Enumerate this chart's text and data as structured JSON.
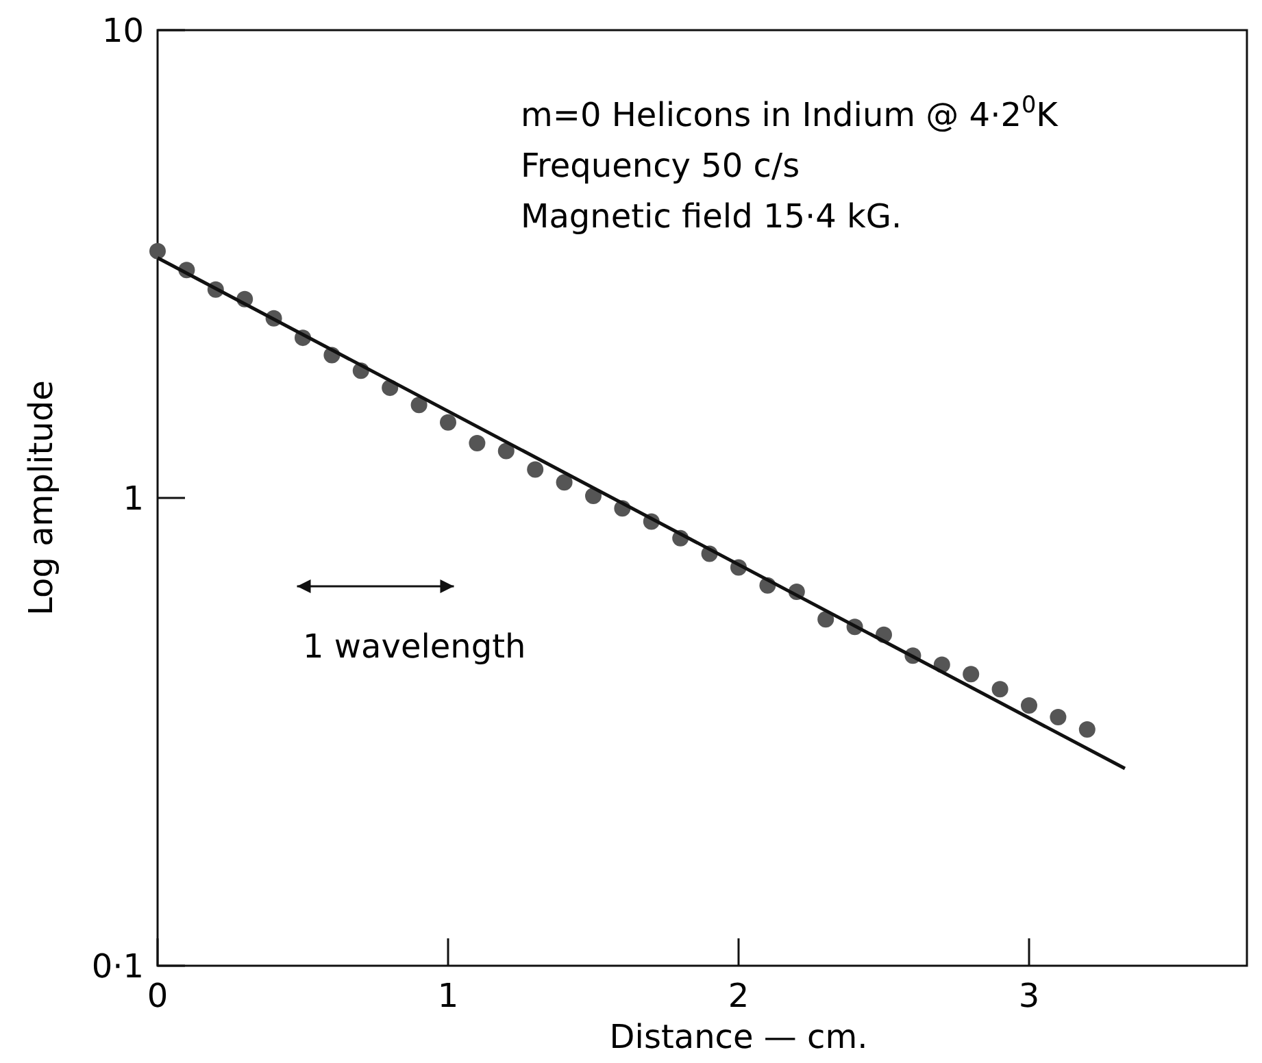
{
  "chart_data": {
    "type": "scatter",
    "xlabel": "Distance — cm.",
    "ylabel": "Log amplitude",
    "log": "y",
    "xlim": [
      0,
      3.75
    ],
    "ylim": [
      0.1,
      10
    ],
    "xticks": [
      0,
      1,
      2,
      3
    ],
    "yticks": [
      {
        "value": 0.1,
        "label": "0·1"
      },
      {
        "value": 1,
        "label": "1"
      },
      {
        "value": 10,
        "label": "10"
      }
    ],
    "grid": false,
    "annotations": [
      "m=0 Helicons in Indium @ 4·2$^{0}$K",
      "Frequency 50 c/s",
      "Magnetic field 15·4 kG.",
      "1 wavelength"
    ],
    "series": [
      {
        "marker": "circle",
        "color": "#555555",
        "x": [
          0,
          0.1,
          0.2,
          0.3,
          0.4,
          0.5,
          0.6,
          0.7,
          0.8,
          0.9,
          1.0,
          1.1,
          1.2,
          1.3,
          1.4,
          1.5,
          1.6,
          1.7,
          1.8,
          1.9,
          2.0,
          2.1,
          2.2,
          2.3,
          2.4,
          2.5,
          2.6,
          2.7,
          2.8,
          2.9,
          3.0,
          3.1,
          3.2
        ],
        "values": [
          3.37,
          3.07,
          2.79,
          2.66,
          2.42,
          2.2,
          2.02,
          1.87,
          1.72,
          1.58,
          1.45,
          1.31,
          1.26,
          1.15,
          1.08,
          1.01,
          0.95,
          0.89,
          0.82,
          0.76,
          0.71,
          0.65,
          0.63,
          0.55,
          0.53,
          0.51,
          0.46,
          0.44,
          0.42,
          0.39,
          0.36,
          0.34,
          0.32
        ]
      },
      {
        "type": "line",
        "marker": "none",
        "color": "#111111",
        "line_style": "solid",
        "x": [
          0,
          3.33
        ],
        "values": [
          3.26,
          0.264
        ]
      }
    ]
  }
}
